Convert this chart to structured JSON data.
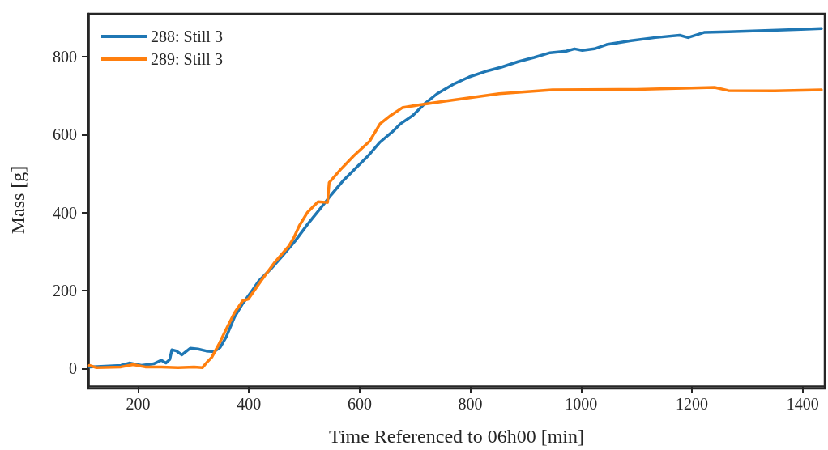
{
  "chart_data": {
    "type": "line",
    "xlabel": "Time Referenced to 06h00 [min]",
    "ylabel": "Mass [g]",
    "xlim": [
      110,
      1440
    ],
    "ylim": [
      -45,
      910
    ],
    "xticks": [
      200,
      400,
      600,
      800,
      1000,
      1200,
      1400
    ],
    "yticks": [
      0,
      200,
      400,
      600,
      800
    ],
    "grid": false,
    "legend": "top left",
    "marker": "none",
    "line_style": "solid",
    "series": [
      {
        "name": "288: Still 3",
        "color": "#1f77b4",
        "x": [
          112,
          169,
          184,
          206,
          228,
          242,
          250,
          257,
          261,
          269,
          279,
          294,
          308,
          323,
          337,
          348,
          359,
          374,
          389,
          403,
          418,
          440,
          462,
          484,
          506,
          527,
          549,
          571,
          593,
          615,
          637,
          659,
          674,
          696,
          718,
          740,
          769,
          798,
          827,
          856,
          886,
          915,
          944,
          973,
          988,
          1002,
          1024,
          1046,
          1090,
          1134,
          1178,
          1193,
          1222,
          1266,
          1310,
          1354,
          1397,
          1434
        ],
        "values": [
          4,
          8,
          14,
          8,
          12,
          21,
          14,
          23,
          48,
          45,
          35,
          52,
          50,
          45,
          43,
          54,
          81,
          132,
          167,
          194,
          225,
          256,
          291,
          328,
          370,
          407,
          446,
          483,
          514,
          545,
          581,
          607,
          628,
          649,
          680,
          705,
          729,
          748,
          762,
          773,
          787,
          798,
          810,
          814,
          820,
          816,
          820,
          831,
          841,
          849,
          855,
          849,
          862,
          864,
          866,
          868,
          870,
          872
        ]
      },
      {
        "name": "289: Still 3",
        "color": "#ff7f0e",
        "x": [
          112,
          125,
          169,
          191,
          213,
          242,
          272,
          301,
          316,
          323,
          333,
          345,
          359,
          374,
          389,
          399,
          422,
          447,
          472,
          481,
          491,
          506,
          525,
          542,
          545,
          564,
          589,
          618,
          637,
          656,
          677,
          706,
          754,
          852,
          948,
          1100,
          1241,
          1266,
          1350,
          1434
        ],
        "values": [
          8,
          2,
          4,
          10,
          4,
          4,
          2,
          4,
          2,
          14,
          29,
          60,
          101,
          143,
          174,
          178,
          225,
          273,
          314,
          335,
          366,
          401,
          428,
          426,
          477,
          508,
          545,
          583,
          628,
          649,
          669,
          676,
          686,
          705,
          715,
          716,
          721,
          713,
          712,
          715
        ]
      }
    ]
  }
}
